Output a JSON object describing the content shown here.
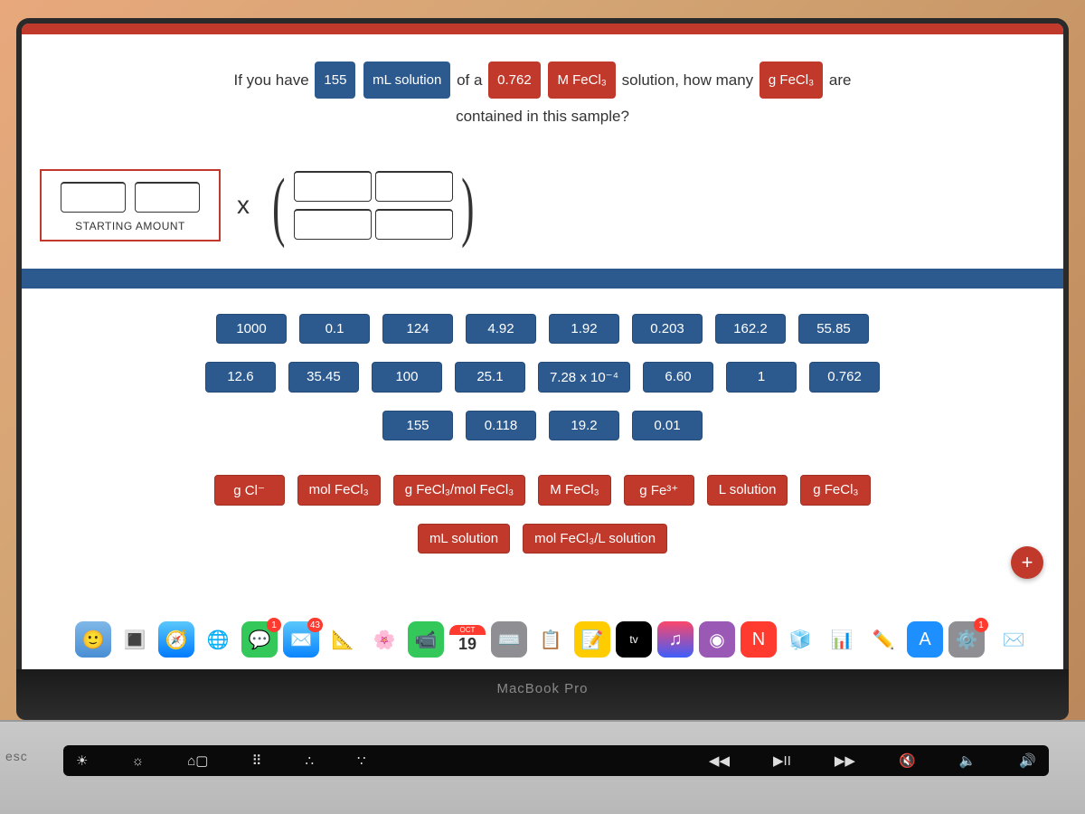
{
  "colors": {
    "blue": "#2c5a8f",
    "red": "#c0392b",
    "screen_border": "#2a2a2a",
    "hinge": "#1a1a1a"
  },
  "question": {
    "p1": "If you have",
    "v1": "155",
    "u1": "mL solution",
    "p2": "of a",
    "v2": "0.762",
    "u2": "M FeCl₃",
    "p3": "solution, how many",
    "u3": "g FeCl₃",
    "p4": "are",
    "p5": "contained in this sample?"
  },
  "starting_label": "STARTING AMOUNT",
  "multiply_symbol": "x",
  "number_tiles": [
    "1000",
    "0.1",
    "124",
    "4.92",
    "1.92",
    "0.203",
    "162.2",
    "55.85",
    "12.6",
    "35.45",
    "100",
    "25.1",
    "7.28 x 10⁻⁴",
    "6.60",
    "1",
    "0.762",
    "155",
    "0.118",
    "19.2",
    "0.01"
  ],
  "unit_tiles": [
    "g Cl⁻",
    "mol FeCl₃",
    "g FeCl₃/mol FeCl₃",
    "M FeCl₃",
    "g Fe³⁺",
    "L solution",
    "g FeCl₃",
    "mL solution",
    "mol FeCl₃/L solution"
  ],
  "fab": "+",
  "dock": {
    "cal_month": "OCT",
    "cal_day": "19",
    "messages_badge": "1",
    "mail_badge": "43",
    "settings_badge": "1",
    "tv_label": "tv"
  },
  "hinge_label": "MacBook Pro",
  "touchbar": {
    "esc": "esc",
    "brightness_low": "☀",
    "brightness_high": "☼",
    "mission": "⌂▢",
    "launchpad": "⠿",
    "kbd_low": "∴",
    "kbd_high": "∵",
    "rew": "◀◀",
    "play": "▶II",
    "fwd": "▶▶",
    "mute": "🔇",
    "vol_low": "🔈",
    "vol_high": "🔊"
  }
}
